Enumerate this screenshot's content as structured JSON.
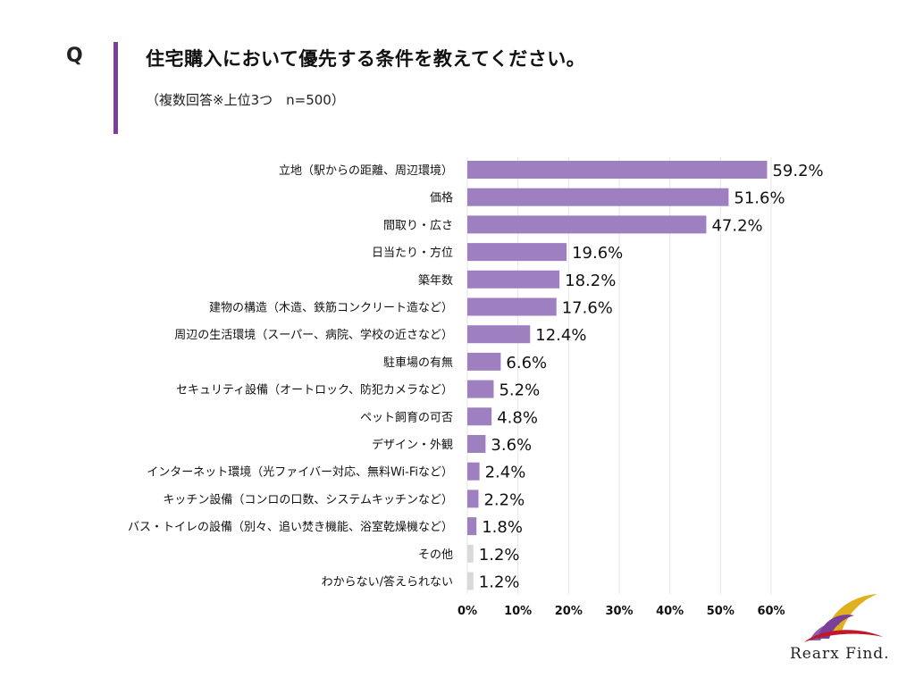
{
  "header": {
    "q_label": "Q",
    "title": "住宅購入において優先する条件を教えてください。",
    "note": "（複数回答※上位3つ　n=500）"
  },
  "colors": {
    "accent_bar": "#7b3f98",
    "bar_primary": "#9e7fbf",
    "bar_secondary": "#d9d9d9",
    "grid": "#e6e6e6"
  },
  "chart_data": {
    "type": "bar",
    "orientation": "horizontal",
    "categories": [
      "立地（駅からの距離、周辺環境）",
      "価格",
      "間取り・広さ",
      "日当たり・方位",
      "築年数",
      "建物の構造（木造、鉄筋コンクリート造など）",
      "周辺の生活環境（スーパー、病院、学校の近さなど）",
      "駐車場の有無",
      "セキュリティ設備（オートロック、防犯カメラなど）",
      "ペット飼育の可否",
      "デザイン・外観",
      "インターネット環境（光ファイバー対応、無料Wi-Fiなど）",
      "キッチン設備（コンロの口数、システムキッチンなど）",
      "バス・トイレの設備（別々、追い焚き機能、浴室乾燥機など）",
      "その他",
      "わからない/答えられない"
    ],
    "values": [
      59.2,
      51.6,
      47.2,
      19.6,
      18.2,
      17.6,
      12.4,
      6.6,
      5.2,
      4.8,
      3.6,
      2.4,
      2.2,
      1.8,
      1.2,
      1.2
    ],
    "value_labels": [
      "59.2%",
      "51.6%",
      "47.2%",
      "19.6%",
      "18.2%",
      "17.6%",
      "12.4%",
      "6.6%",
      "5.2%",
      "4.8%",
      "3.6%",
      "2.4%",
      "2.2%",
      "1.8%",
      "1.2%",
      "1.2%"
    ],
    "bar_color_keys": [
      "bar_primary",
      "bar_primary",
      "bar_primary",
      "bar_primary",
      "bar_primary",
      "bar_primary",
      "bar_primary",
      "bar_primary",
      "bar_primary",
      "bar_primary",
      "bar_primary",
      "bar_primary",
      "bar_primary",
      "bar_primary",
      "bar_secondary",
      "bar_secondary"
    ],
    "x_ticks": [
      0,
      10,
      20,
      30,
      40,
      50,
      60
    ],
    "x_tick_labels": [
      "0%",
      "10%",
      "20%",
      "30%",
      "40%",
      "50%",
      "60%"
    ],
    "xlim": [
      0,
      60
    ],
    "grid": true,
    "title": "",
    "xlabel": "",
    "ylabel": ""
  },
  "logo": {
    "text": "Rearx Find."
  }
}
